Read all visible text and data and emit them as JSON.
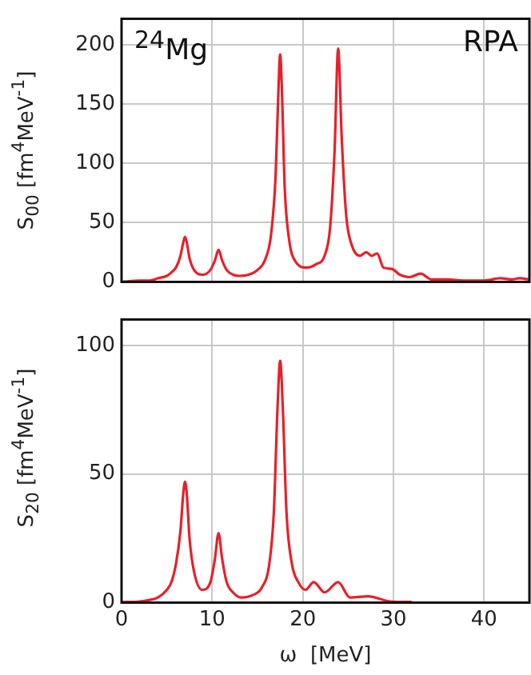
{
  "chart_data": [
    {
      "type": "line",
      "ylabel": "S$_{00}$  [fm$^{4}$MeV$^{-1}$]",
      "annotations": [
        "$^{24}$Mg",
        "RPA"
      ],
      "x": [
        0,
        2,
        3,
        4,
        5,
        5.5,
        6,
        6.5,
        6.8,
        7,
        7.2,
        7.5,
        8,
        8.9,
        9.8,
        10.3,
        10.7,
        11.1,
        11.6,
        12.3,
        13,
        14,
        15,
        15.8,
        16.5,
        17,
        17.3,
        17.5,
        17.7,
        18,
        18.5,
        19.2,
        20.4,
        21.5,
        22.4,
        23,
        23.5,
        23.9,
        24.3,
        24.8,
        25.4,
        26.3,
        27,
        27.6,
        28.2,
        28.9,
        29.8,
        30.7,
        31.8,
        33,
        34.2,
        36,
        37.7,
        40,
        41.8,
        43,
        43.9,
        45
      ],
      "series": [
        {
          "color": "#e8202a",
          "values": [
            0,
            1,
            1,
            3,
            5,
            8,
            12,
            22,
            33,
            38,
            33,
            20,
            10,
            6,
            10,
            18,
            27,
            18,
            10,
            6,
            5,
            6,
            10,
            18,
            40,
            90,
            160,
            192,
            160,
            80,
            35,
            17,
            12,
            15,
            22,
            45,
            110,
            197,
            120,
            55,
            31,
            22,
            25,
            22,
            24,
            12,
            11,
            6,
            4,
            7,
            2,
            2,
            1,
            1,
            3,
            2,
            3,
            2
          ]
        }
      ],
      "xlim": [
        0,
        45
      ],
      "xticks": [
        0,
        10,
        20,
        30,
        40
      ],
      "ylim": [
        0,
        222
      ],
      "yticks": [
        0,
        50,
        100,
        150,
        200
      ],
      "grid": true,
      "tick_labels": "y"
    },
    {
      "type": "line",
      "ylabel": "S$_{20}$  [fm$^{4}$MeV$^{-1}$]",
      "xlabel": "ω  [MeV]",
      "x": [
        0,
        2,
        3,
        4,
        5,
        5.5,
        6,
        6.5,
        6.8,
        7,
        7.2,
        7.5,
        8,
        8.9,
        9.8,
        10.3,
        10.7,
        11.1,
        11.6,
        12.3,
        13.2,
        14.5,
        15.5,
        16.3,
        16.8,
        17.2,
        17.5,
        17.8,
        18.2,
        18.8,
        19.5,
        20.3,
        21.2,
        22.4,
        23.9,
        25.2,
        27.2,
        29.6,
        32
      ],
      "series": [
        {
          "color": "#e8202a",
          "values": [
            0.2,
            0.5,
            1,
            2,
            5,
            8,
            15,
            28,
            42,
            47,
            42,
            25,
            12,
            5,
            8,
            17,
            27,
            17,
            8,
            4,
            2,
            3,
            6,
            15,
            35,
            75,
            94,
            75,
            35,
            15,
            8,
            5,
            8,
            4,
            8,
            2,
            2.5,
            0.5,
            0.3
          ]
        }
      ],
      "xlim": [
        0,
        45
      ],
      "xticks": [
        0,
        10,
        20,
        30,
        40
      ],
      "ylim": [
        0,
        110
      ],
      "yticks": [
        0,
        50,
        100
      ],
      "grid": true
    }
  ]
}
